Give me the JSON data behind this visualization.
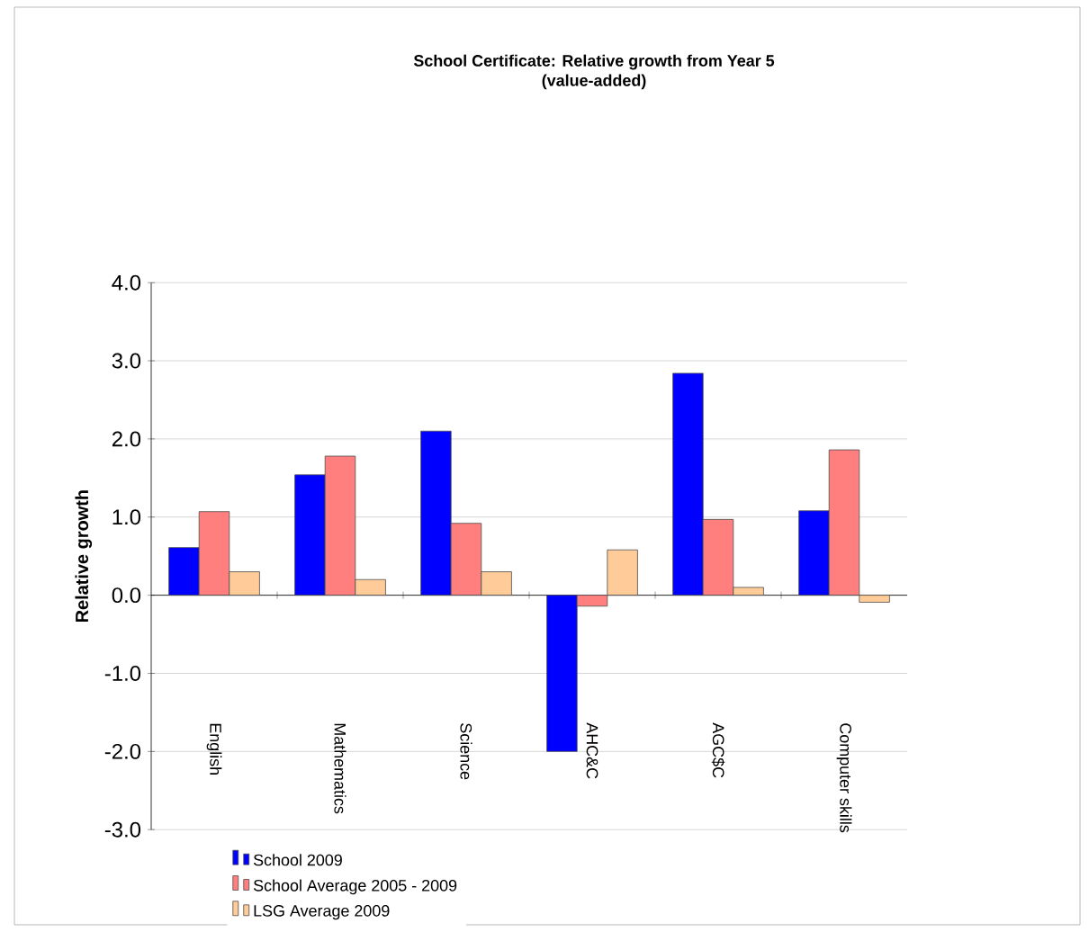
{
  "chart_data": {
    "type": "bar",
    "title": "School Certificate:  Relative growth  from Year 5\n(value-added)",
    "ylabel": "Relative growth",
    "categories": [
      "English",
      "Mathematics",
      "Science",
      "AHC&C",
      "AGC$C",
      "Computer skills"
    ],
    "series": [
      {
        "name": "School 2009",
        "color": "#0000ff",
        "values": [
          0.61,
          1.54,
          2.1,
          -2.0,
          2.84,
          1.08
        ]
      },
      {
        "name": "School Average 2005 - 2009",
        "color": "#ff7f7f",
        "values": [
          1.07,
          1.78,
          0.92,
          -0.14,
          0.97,
          1.86
        ]
      },
      {
        "name": "LSG Average 2009",
        "color": "#ffcc99",
        "values": [
          0.3,
          0.2,
          0.3,
          0.58,
          0.1,
          -0.09
        ]
      }
    ],
    "ylim": [
      -3,
      4
    ],
    "yticks": [
      {
        "value": -3,
        "label": "-3.0"
      },
      {
        "value": -2,
        "label": "-2.0"
      },
      {
        "value": -1,
        "label": "-1.0"
      },
      {
        "value": 0,
        "label": "0.0"
      },
      {
        "value": 1,
        "label": "1.0"
      },
      {
        "value": 2,
        "label": "2.0"
      },
      {
        "value": 3,
        "label": "3.0"
      },
      {
        "value": 4,
        "label": "4.0"
      }
    ],
    "grid": "y",
    "legend": "bottom"
  }
}
